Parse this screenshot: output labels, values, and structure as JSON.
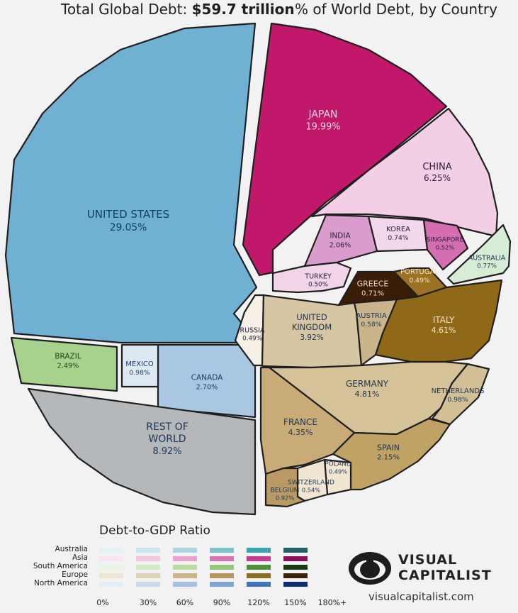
{
  "header": {
    "total_label": "Total Global Debt:",
    "total_value": "$59.7 trillion",
    "subtitle": "% of World Debt, by Country"
  },
  "chart_data": {
    "type": "pie",
    "title": "% of World Debt, by Country",
    "total": "$59.7 trillion",
    "slices": [
      {
        "label": "UNITED STATES",
        "value": 29.05,
        "display": "29.05%",
        "region": "North America"
      },
      {
        "label": "CANADA",
        "value": 2.7,
        "display": "2.70%",
        "region": "North America"
      },
      {
        "label": "MEXICO",
        "value": 0.98,
        "display": "0.98%",
        "region": "North America"
      },
      {
        "label": "BRAZIL",
        "value": 2.49,
        "display": "2.49%",
        "region": "South America"
      },
      {
        "label": "REST OF WORLD",
        "value": 8.92,
        "display": "8.92%",
        "region": ""
      },
      {
        "label": "JAPAN",
        "value": 19.99,
        "display": "19.99%",
        "region": "Asia"
      },
      {
        "label": "CHINA",
        "value": 6.25,
        "display": "6.25%",
        "region": "Asia"
      },
      {
        "label": "INDIA",
        "value": 2.06,
        "display": "2.06%",
        "region": "Asia"
      },
      {
        "label": "KOREA",
        "value": 0.74,
        "display": "0.74%",
        "region": "Asia"
      },
      {
        "label": "SINGAPORE",
        "value": 0.52,
        "display": "0.52%",
        "region": "Asia"
      },
      {
        "label": "TURKEY",
        "value": 0.5,
        "display": "0.50%",
        "region": "Asia"
      },
      {
        "label": "AUSTRALIA",
        "value": 0.77,
        "display": "0.77%",
        "region": "Australia"
      },
      {
        "label": "GREECE",
        "value": 0.71,
        "display": "0.71%",
        "region": "Europe"
      },
      {
        "label": "PORTUGAL",
        "value": 0.49,
        "display": "0.49%",
        "region": "Europe"
      },
      {
        "label": "RUSSIA",
        "value": 0.49,
        "display": "0.49%",
        "region": "Europe"
      },
      {
        "label": "UNITED KINGDOM",
        "value": 3.92,
        "display": "3.92%",
        "region": "Europe"
      },
      {
        "label": "AUSTRIA",
        "value": 0.58,
        "display": "0.58%",
        "region": "Europe"
      },
      {
        "label": "ITALY",
        "value": 4.61,
        "display": "4.61%",
        "region": "Europe"
      },
      {
        "label": "GERMANY",
        "value": 4.81,
        "display": "4.81%",
        "region": "Europe"
      },
      {
        "label": "NETHERLANDS",
        "value": 0.98,
        "display": "0.98%",
        "region": "Europe"
      },
      {
        "label": "FRANCE",
        "value": 4.35,
        "display": "4.35%",
        "region": "Europe"
      },
      {
        "label": "SPAIN",
        "value": 2.15,
        "display": "2.15%",
        "region": "Europe"
      },
      {
        "label": "POLAND",
        "value": 0.49,
        "display": "0.49%",
        "region": "Europe"
      },
      {
        "label": "SWITZERLAND",
        "value": 0.54,
        "display": "0.54%",
        "region": "Europe"
      },
      {
        "label": "BELGIUM",
        "value": 0.92,
        "display": "0.92%",
        "region": "Europe"
      }
    ],
    "legend": {
      "title": "Debt-to-GDP Ratio",
      "regions": [
        "Australia",
        "Asia",
        "South America",
        "Europe",
        "North America"
      ],
      "ticks": [
        "0%",
        "30%",
        "60%",
        "90%",
        "120%",
        "150%",
        "180%+"
      ],
      "scales": {
        "Australia": [
          "#e4f1f3",
          "#c9e6ea",
          "#a9d6dd",
          "#7cc1cc",
          "#3aa3b3",
          "#1f5f68"
        ],
        "Asia": [
          "#f8e3ef",
          "#f1c6de",
          "#e7a3cb",
          "#d673b0",
          "#c43b91",
          "#8e0e5a"
        ],
        "South America": [
          "#e9f3e2",
          "#d3e8c4",
          "#b9daa2",
          "#95c77a",
          "#4f8f3c",
          "#173d16"
        ],
        "Europe": [
          "#efe5d6",
          "#e0d0b4",
          "#cdb48a",
          "#b99660",
          "#8c6a22",
          "#3d200f"
        ],
        "North America": [
          "#e4ecf5",
          "#c9d9ec",
          "#a6c2df",
          "#7ea6d0",
          "#3f74b8",
          "#0f2f72"
        ]
      }
    }
  },
  "logo": {
    "line1": "VISUAL",
    "line2": "CAPITALIST",
    "url": "visualcapitalist.com"
  }
}
